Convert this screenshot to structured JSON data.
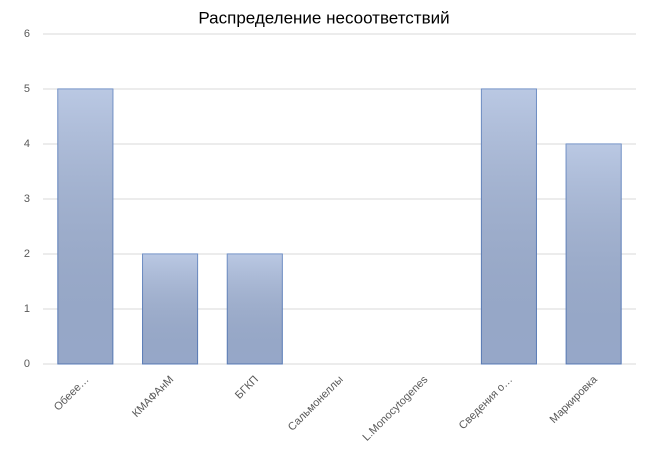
{
  "chart_data": {
    "type": "bar",
    "title": "Распределение несоответствий",
    "categories": [
      "Обеее…",
      "КМАФАнМ",
      "БГКП",
      "Сальмонеллы",
      "L.Monocytogenes",
      "Сведения о…",
      "Маркировка"
    ],
    "values": [
      5,
      2,
      2,
      0,
      0,
      5,
      4
    ],
    "color": "#a3b6da",
    "ylim": [
      0,
      6
    ],
    "yticks": [
      0,
      1,
      2,
      3,
      4,
      5,
      6
    ],
    "grid": true
  }
}
